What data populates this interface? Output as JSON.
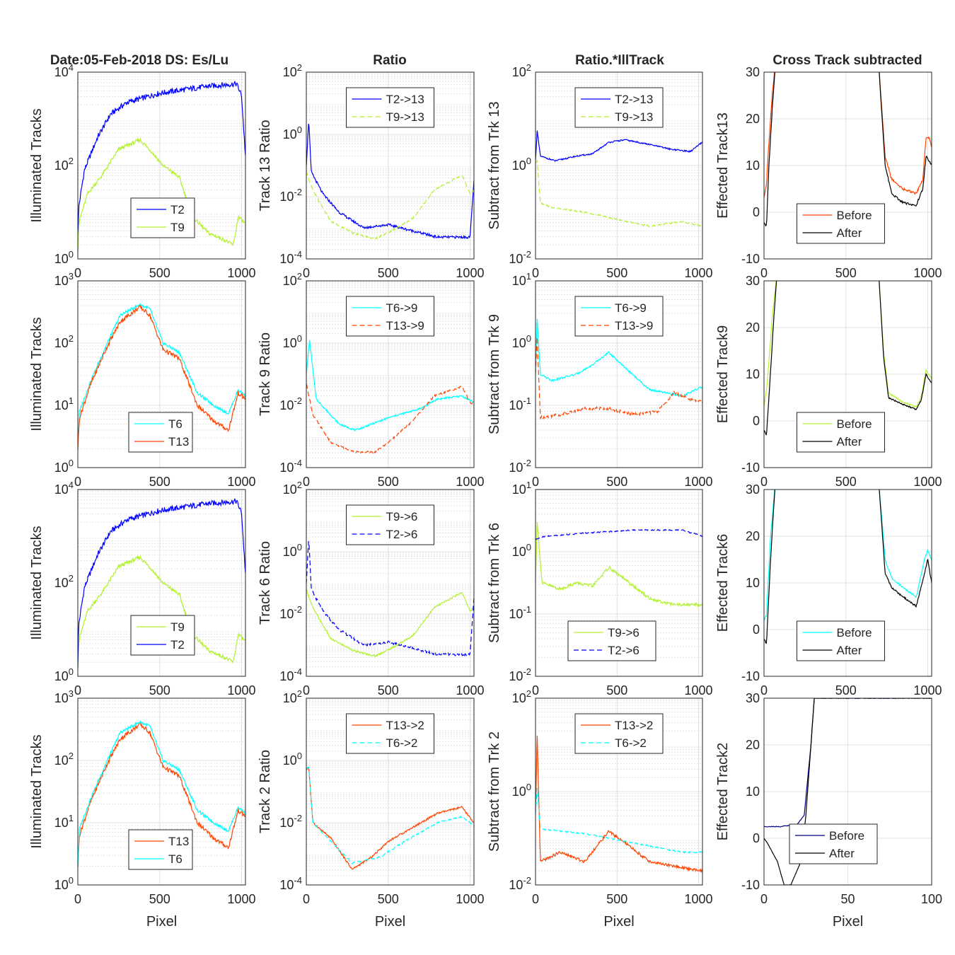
{
  "figure": {
    "column_titles": [
      "Date:05-Feb-2018 DS: Es/Lu",
      "Ratio",
      "Ratio.*IllTrack",
      "Cross Track subtracted"
    ],
    "xlabel": "Pixel"
  },
  "colors": {
    "blue": "#0000ff",
    "yellowgreen": "#b4f032",
    "cyan": "#00ffff",
    "orange": "#ff4500",
    "black": "#000000",
    "navy": "#000080"
  },
  "chart_data": [
    {
      "id": "r1c1",
      "type": "line",
      "ylabel": "Illuminated Tracks",
      "yscale": "log",
      "ylim": [
        1,
        10000
      ],
      "yticks": [
        "10^0",
        "10^2",
        "10^4"
      ],
      "xlim": [
        0,
        1024
      ],
      "xticks": [
        0,
        500,
        1000
      ],
      "legend_loc": "bottom-right",
      "series": [
        {
          "name": "T2",
          "color": "#0000ff",
          "style": "solid",
          "profile": "il_high",
          "scale": 1
        },
        {
          "name": "T9",
          "color": "#b4f032",
          "style": "solid",
          "profile": "il_low",
          "scale": 1
        }
      ]
    },
    {
      "id": "r1c2",
      "type": "line",
      "ylabel": "Track 13 Ratio",
      "yscale": "log",
      "ylim": [
        0.0001,
        100
      ],
      "yticks": [
        "10^-4",
        "10^-2",
        "10^0",
        "10^2"
      ],
      "xlim": [
        0,
        1024
      ],
      "xticks": [
        0,
        500,
        1000
      ],
      "legend_loc": "top-center",
      "series": [
        {
          "name": "T2->13",
          "color": "#0000ff",
          "style": "solid",
          "profile": "ratio_a",
          "scale": 1
        },
        {
          "name": "T9->13",
          "color": "#b4f032",
          "style": "dashed",
          "profile": "ratio_b",
          "scale": 1
        }
      ]
    },
    {
      "id": "r1c3",
      "type": "line",
      "ylabel": "Subtract from Trk 13",
      "yscale": "log",
      "ylim": [
        0.01,
        100
      ],
      "yticks": [
        "10^-2",
        "10^0",
        "10^2"
      ],
      "xlim": [
        0,
        1024
      ],
      "xticks": [
        0,
        500,
        1000
      ],
      "legend_loc": "top-center",
      "series": [
        {
          "name": "T2->13",
          "color": "#0000ff",
          "style": "solid",
          "profile": "sub_hi",
          "scale": 1
        },
        {
          "name": "T9->13",
          "color": "#b4f032",
          "style": "dashed",
          "profile": "sub_lo",
          "scale": 1
        }
      ]
    },
    {
      "id": "r1c4",
      "type": "line",
      "ylabel": "Effected Track13",
      "yscale": "linear",
      "ylim": [
        -10,
        30
      ],
      "yticks": [
        "-10",
        "0",
        "10",
        "20",
        "30"
      ],
      "xlim": [
        0,
        1024
      ],
      "xticks": [
        0,
        500,
        1000
      ],
      "legend_loc": "bottom-center",
      "series": [
        {
          "name": "Before",
          "color": "#ff4500",
          "style": "solid",
          "profile": "cross_before",
          "scale": 1
        },
        {
          "name": "After",
          "color": "#000000",
          "style": "solid",
          "profile": "cross_after",
          "scale": 1
        }
      ]
    },
    {
      "id": "r2c1",
      "type": "line",
      "ylabel": "Illuminated Tracks",
      "yscale": "log",
      "ylim": [
        1,
        1000
      ],
      "yticks": [
        "10^0",
        "10^1",
        "10^2",
        "10^3"
      ],
      "xlim": [
        0,
        1024
      ],
      "xticks": [
        0,
        500,
        1000
      ],
      "legend_loc": "bottom-center",
      "series": [
        {
          "name": "T6",
          "color": "#00ffff",
          "style": "solid",
          "profile": "il_mid_a",
          "scale": 1
        },
        {
          "name": "T13",
          "color": "#ff4500",
          "style": "solid",
          "profile": "il_mid_b",
          "scale": 1
        }
      ]
    },
    {
      "id": "r2c2",
      "type": "line",
      "ylabel": "Track 9 Ratio",
      "yscale": "log",
      "ylim": [
        0.0001,
        100
      ],
      "yticks": [
        "10^-4",
        "10^-2",
        "10^0",
        "10^2"
      ],
      "xlim": [
        0,
        1024
      ],
      "xticks": [
        0,
        500,
        1000
      ],
      "legend_loc": "top-center",
      "series": [
        {
          "name": "T6->9",
          "color": "#00ffff",
          "style": "solid",
          "profile": "ratio_c",
          "scale": 1
        },
        {
          "name": "T13->9",
          "color": "#ff4500",
          "style": "dashed",
          "profile": "ratio_d",
          "scale": 1
        }
      ]
    },
    {
      "id": "r2c3",
      "type": "line",
      "ylabel": "Subtract from Trk 9",
      "yscale": "log",
      "ylim": [
        0.01,
        10
      ],
      "yticks": [
        "10^-2",
        "10^-1",
        "10^0",
        "10^1"
      ],
      "xlim": [
        0,
        1024
      ],
      "xticks": [
        0,
        500,
        1000
      ],
      "legend_loc": "top-center",
      "series": [
        {
          "name": "T6->9",
          "color": "#00ffff",
          "style": "solid",
          "profile": "sub_hump",
          "scale": 1
        },
        {
          "name": "T13->9",
          "color": "#ff4500",
          "style": "dashed",
          "profile": "sub_flat",
          "scale": 1
        }
      ]
    },
    {
      "id": "r2c4",
      "type": "line",
      "ylabel": "Effected Track9",
      "yscale": "linear",
      "ylim": [
        -10,
        30
      ],
      "yticks": [
        "-10",
        "0",
        "10",
        "20",
        "30"
      ],
      "xlim": [
        0,
        1024
      ],
      "xticks": [
        0,
        500,
        1000
      ],
      "legend_loc": "bottom-center",
      "series": [
        {
          "name": "Before",
          "color": "#b4f032",
          "style": "solid",
          "profile": "cross_before9",
          "scale": 1
        },
        {
          "name": "After",
          "color": "#000000",
          "style": "solid",
          "profile": "cross_after9",
          "scale": 1
        }
      ]
    },
    {
      "id": "r3c1",
      "type": "line",
      "ylabel": "Illuminated Tracks",
      "yscale": "log",
      "ylim": [
        1,
        10000
      ],
      "yticks": [
        "10^0",
        "10^2",
        "10^4"
      ],
      "xlim": [
        0,
        1024
      ],
      "xticks": [
        0,
        500,
        1000
      ],
      "legend_loc": "bottom-right",
      "series": [
        {
          "name": "T9",
          "color": "#b4f032",
          "style": "solid",
          "profile": "il_low",
          "scale": 1
        },
        {
          "name": "T2",
          "color": "#0000ff",
          "style": "solid",
          "profile": "il_high",
          "scale": 1
        }
      ]
    },
    {
      "id": "r3c2",
      "type": "line",
      "ylabel": "Track 6 Ratio",
      "yscale": "log",
      "ylim": [
        0.0001,
        100
      ],
      "yticks": [
        "10^-4",
        "10^-2",
        "10^0",
        "10^2"
      ],
      "xlim": [
        0,
        1024
      ],
      "xticks": [
        0,
        500,
        1000
      ],
      "legend_loc": "top-center",
      "series": [
        {
          "name": "T9->6",
          "color": "#b4f032",
          "style": "solid",
          "profile": "ratio_b",
          "scale": 1
        },
        {
          "name": "T2->6",
          "color": "#0000ff",
          "style": "dashed",
          "profile": "ratio_a",
          "scale": 1
        }
      ]
    },
    {
      "id": "r3c3",
      "type": "line",
      "ylabel": "Subtract from Trk 6",
      "yscale": "log",
      "ylim": [
        0.01,
        10
      ],
      "yticks": [
        "10^-2",
        "10^-1",
        "10^0",
        "10^1"
      ],
      "xlim": [
        0,
        1024
      ],
      "xticks": [
        0,
        500,
        1000
      ],
      "legend_loc": "bottom-center",
      "series": [
        {
          "name": "T9->6",
          "color": "#b4f032",
          "style": "solid",
          "profile": "sub_hump_low",
          "scale": 1
        },
        {
          "name": "T2->6",
          "color": "#0000ff",
          "style": "dashed",
          "profile": "sub_top",
          "scale": 1
        }
      ]
    },
    {
      "id": "r3c4",
      "type": "line",
      "ylabel": "Effected Track6",
      "yscale": "linear",
      "ylim": [
        -10,
        30
      ],
      "yticks": [
        "-10",
        "0",
        "10",
        "20",
        "30"
      ],
      "xlim": [
        0,
        1024
      ],
      "xticks": [
        0,
        500,
        1000
      ],
      "legend_loc": "bottom-center",
      "series": [
        {
          "name": "Before",
          "color": "#00ffff",
          "style": "solid",
          "profile": "cross_before6",
          "scale": 1
        },
        {
          "name": "After",
          "color": "#000000",
          "style": "solid",
          "profile": "cross_after6",
          "scale": 1
        }
      ]
    },
    {
      "id": "r4c1",
      "type": "line",
      "ylabel": "Illuminated Tracks",
      "yscale": "log",
      "ylim": [
        1,
        1000
      ],
      "yticks": [
        "10^0",
        "10^1",
        "10^2",
        "10^3"
      ],
      "xlim": [
        0,
        1024
      ],
      "xticks": [
        0,
        500,
        1000
      ],
      "legend_loc": "bottom-center",
      "series": [
        {
          "name": "T13",
          "color": "#ff4500",
          "style": "solid",
          "profile": "il_mid_b",
          "scale": 1
        },
        {
          "name": "T6",
          "color": "#00ffff",
          "style": "solid",
          "profile": "il_mid_a",
          "scale": 1
        }
      ]
    },
    {
      "id": "r4c2",
      "type": "line",
      "ylabel": "Track 2 Ratio",
      "yscale": "log",
      "ylim": [
        0.0001,
        100
      ],
      "yticks": [
        "10^-4",
        "10^-2",
        "10^0",
        "10^2"
      ],
      "xlim": [
        0,
        1024
      ],
      "xticks": [
        0,
        500,
        1000
      ],
      "legend_loc": "top-center",
      "series": [
        {
          "name": "T13->2",
          "color": "#ff4500",
          "style": "solid",
          "profile": "ratio_e",
          "scale": 1
        },
        {
          "name": "T6->2",
          "color": "#00ffff",
          "style": "dashed",
          "profile": "ratio_f",
          "scale": 1
        }
      ]
    },
    {
      "id": "r4c3",
      "type": "line",
      "ylabel": "Subtract from Trk 2",
      "yscale": "log",
      "ylim": [
        0.01,
        100
      ],
      "yticks": [
        "10^-2",
        "10^0",
        "10^2"
      ],
      "xlim": [
        0,
        1024
      ],
      "xticks": [
        0,
        500,
        1000
      ],
      "legend_loc": "top-center",
      "series": [
        {
          "name": "T13->2",
          "color": "#ff4500",
          "style": "solid",
          "profile": "sub_t2a",
          "scale": 1
        },
        {
          "name": "T6->2",
          "color": "#00ffff",
          "style": "dashed",
          "profile": "sub_t2b",
          "scale": 1
        }
      ]
    },
    {
      "id": "r4c4",
      "type": "line",
      "ylabel": "Effected Track2",
      "yscale": "linear",
      "ylim": [
        -10,
        30
      ],
      "yticks": [
        "-10",
        "0",
        "10",
        "20",
        "30"
      ],
      "xlim": [
        0,
        100
      ],
      "xticks": [
        0,
        50,
        100
      ],
      "legend_loc": "bottom-right",
      "series": [
        {
          "name": "Before",
          "color": "#000080",
          "style": "solid",
          "profile": "t2_before",
          "scale": 1
        },
        {
          "name": "After",
          "color": "#000000",
          "style": "solid",
          "profile": "t2_after",
          "scale": 1
        }
      ]
    }
  ]
}
